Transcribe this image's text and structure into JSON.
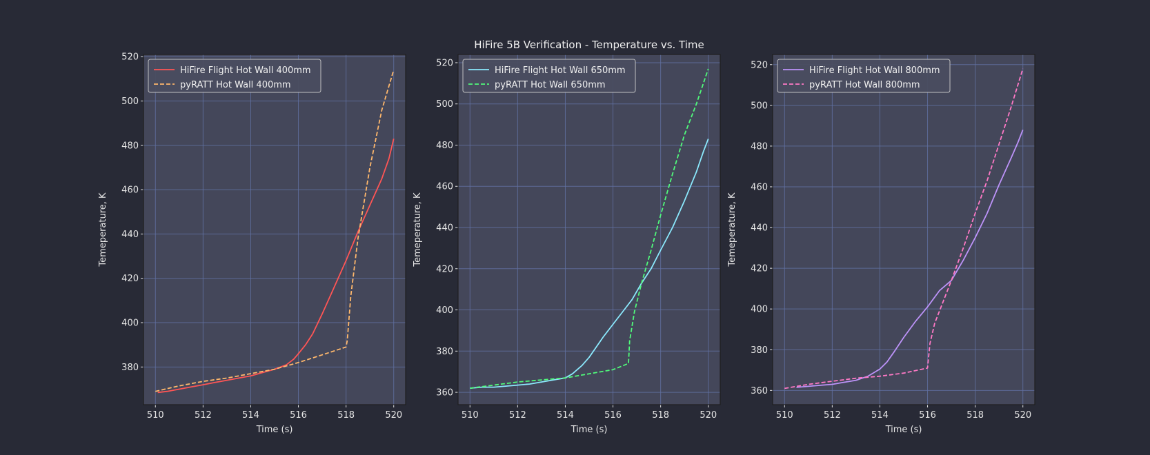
{
  "figure_title": "HiFire 5B Verification - Temperature vs. Time",
  "chart_data": [
    {
      "type": "line",
      "xlabel": "Time (s)",
      "ylabel": "Temeperature, K",
      "xlim": [
        509.5,
        520.5
      ],
      "ylim": [
        363,
        521
      ],
      "xticks": [
        510,
        512,
        514,
        516,
        518,
        520
      ],
      "yticks": [
        380,
        400,
        420,
        440,
        460,
        480,
        500,
        520
      ],
      "grid": true,
      "legend_position": "top-left",
      "series": [
        {
          "name": "HiFire Flight Hot Wall 400mm",
          "color": "#ff5555",
          "dash": "solid",
          "x": [
            510.1,
            510.5,
            511.0,
            511.5,
            512.0,
            512.5,
            513.0,
            513.5,
            514.0,
            514.5,
            515.0,
            515.5,
            515.8,
            516.0,
            516.3,
            516.6,
            517.0,
            517.5,
            518.0,
            518.5,
            519.0,
            519.5,
            519.8,
            520.0
          ],
          "y": [
            368.5,
            369,
            370,
            371,
            372,
            373,
            374,
            375,
            376,
            377.5,
            379,
            381,
            383.5,
            386,
            390,
            395,
            404,
            416,
            428,
            441,
            453,
            465,
            474,
            483
          ]
        },
        {
          "name": "pyRATT Hot Wall 400mm",
          "color": "#ffb86c",
          "dash": "dashed",
          "x": [
            510.0,
            511.0,
            512.0,
            513.0,
            514.0,
            515.0,
            516.0,
            517.0,
            518.0,
            518.05,
            518.2,
            518.5,
            519.0,
            519.5,
            520.0
          ],
          "y": [
            369,
            371.5,
            373.5,
            375,
            377,
            379,
            382,
            385.5,
            389,
            392,
            412,
            438,
            470,
            496,
            514
          ]
        }
      ]
    },
    {
      "type": "line",
      "xlabel": "Time (s)",
      "ylabel": "Temeperature, K",
      "xlim": [
        509.5,
        520.5
      ],
      "ylim": [
        354,
        524
      ],
      "xticks": [
        510,
        512,
        514,
        516,
        518,
        520
      ],
      "yticks": [
        360,
        380,
        400,
        420,
        440,
        460,
        480,
        500,
        520
      ],
      "grid": true,
      "legend_position": "top-left",
      "series": [
        {
          "name": "HiFire Flight Hot Wall 650mm",
          "color": "#8be9fd",
          "dash": "solid",
          "x": [
            510.0,
            510.5,
            511.0,
            511.5,
            512.0,
            512.5,
            513.0,
            513.5,
            514.0,
            514.3,
            514.7,
            515.0,
            515.3,
            515.6,
            516.0,
            516.4,
            516.8,
            517.2,
            517.6,
            518.0,
            518.5,
            519.0,
            519.5,
            519.8,
            520.0
          ],
          "y": [
            362,
            362.5,
            362.5,
            363,
            363.5,
            364,
            365,
            366,
            367,
            369,
            373,
            377,
            382,
            387,
            393,
            399,
            405,
            413,
            420,
            429,
            440,
            453,
            467,
            477,
            483
          ]
        },
        {
          "name": "pyRATT Hot Wall 650mm",
          "color": "#50fa7b",
          "dash": "dashed",
          "x": [
            510.0,
            511.0,
            512.0,
            513.0,
            514.0,
            515.0,
            516.0,
            516.65,
            516.7,
            516.9,
            517.2,
            517.6,
            518.0,
            518.5,
            519.0,
            519.5,
            520.0
          ],
          "y": [
            362,
            363.5,
            365,
            366,
            367,
            369,
            371,
            374,
            385,
            399,
            413,
            429,
            446,
            466,
            485,
            500,
            517
          ]
        }
      ]
    },
    {
      "type": "line",
      "xlabel": "Time (s)",
      "ylabel": "Temeperature, K",
      "xlim": [
        509.5,
        520.5
      ],
      "ylim": [
        353,
        525
      ],
      "xticks": [
        510,
        512,
        514,
        516,
        518,
        520
      ],
      "yticks": [
        360,
        380,
        400,
        420,
        440,
        460,
        480,
        500,
        520
      ],
      "grid": true,
      "legend_position": "top-left",
      "series": [
        {
          "name": "HiFire Flight Hot Wall 800mm",
          "color": "#bd93f9",
          "dash": "solid",
          "x": [
            510.5,
            511.0,
            511.5,
            512.0,
            512.5,
            513.0,
            513.5,
            514.0,
            514.3,
            514.6,
            515.0,
            515.5,
            516.0,
            516.5,
            517.0,
            517.5,
            518.0,
            518.5,
            519.0,
            519.5,
            519.8,
            520.0
          ],
          "y": [
            361.5,
            362,
            362.5,
            363,
            364,
            365,
            367,
            370.5,
            374,
            379,
            386,
            394,
            401,
            409,
            414,
            424,
            435,
            447,
            461,
            474,
            482,
            488
          ]
        },
        {
          "name": "pyRATT Hot Wall 800mm",
          "color": "#ff79c6",
          "dash": "dashed",
          "x": [
            510.0,
            511.0,
            512.0,
            513.0,
            514.0,
            515.0,
            516.0,
            516.1,
            516.3,
            516.6,
            517.0,
            517.5,
            518.0,
            518.5,
            519.0,
            519.5,
            520.0
          ],
          "y": [
            361,
            363,
            364.5,
            366,
            367,
            368.5,
            371,
            383,
            393,
            402,
            414,
            430,
            447,
            463,
            481,
            499,
            518
          ]
        }
      ]
    }
  ]
}
